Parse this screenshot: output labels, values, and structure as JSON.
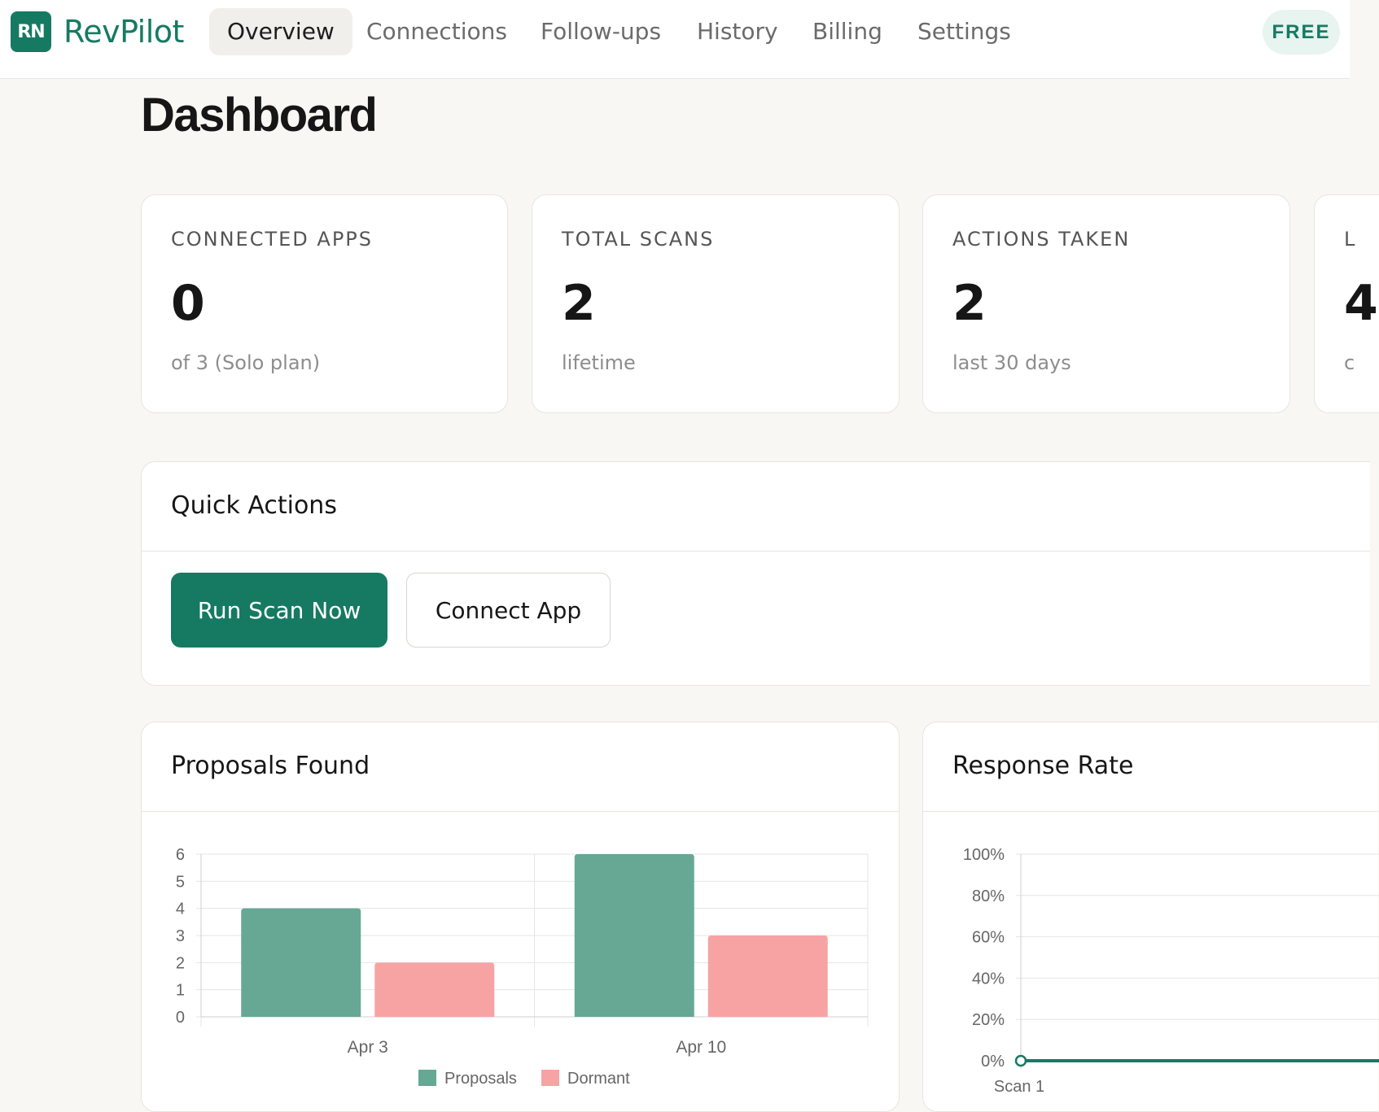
{
  "brand": {
    "logo_text": "RN",
    "name": "RevPilot"
  },
  "nav": {
    "items": [
      {
        "label": "Overview",
        "active": true
      },
      {
        "label": "Connections",
        "active": false
      },
      {
        "label": "Follow-ups",
        "active": false
      },
      {
        "label": "History",
        "active": false
      },
      {
        "label": "Billing",
        "active": false
      },
      {
        "label": "Settings",
        "active": false
      }
    ],
    "plan_badge": "FREE"
  },
  "page": {
    "title": "Dashboard"
  },
  "stats": [
    {
      "label": "CONNECTED APPS",
      "value": "0",
      "sub": "of 3 (Solo plan)"
    },
    {
      "label": "TOTAL SCANS",
      "value": "2",
      "sub": "lifetime"
    },
    {
      "label": "ACTIONS TAKEN",
      "value": "2",
      "sub": "last 30 days"
    },
    {
      "label": "L",
      "value": "4",
      "sub": "c"
    }
  ],
  "quick_actions": {
    "title": "Quick Actions",
    "run_scan_label": "Run Scan Now",
    "connect_app_label": "Connect App"
  },
  "colors": {
    "accent": "#167a63",
    "proposals": "#66a893",
    "dormant": "#f8a3a3"
  },
  "chart_data": [
    {
      "type": "bar",
      "title": "Proposals Found",
      "categories": [
        "Apr 3",
        "Apr 10"
      ],
      "series": [
        {
          "name": "Proposals",
          "values": [
            4,
            6
          ]
        },
        {
          "name": "Dormant",
          "values": [
            2,
            3
          ]
        }
      ],
      "ylim": [
        0,
        6
      ],
      "yticks": [
        0,
        1,
        2,
        3,
        4,
        5,
        6
      ],
      "grid": true,
      "legend": "bottom"
    },
    {
      "type": "line",
      "title": "Response Rate",
      "x": [
        "Scan 1"
      ],
      "series": [
        {
          "values": [
            0
          ]
        }
      ],
      "ylim": [
        0,
        100
      ],
      "yticks": [
        "0%",
        "20%",
        "40%",
        "60%",
        "80%",
        "100%"
      ],
      "grid": true
    }
  ]
}
